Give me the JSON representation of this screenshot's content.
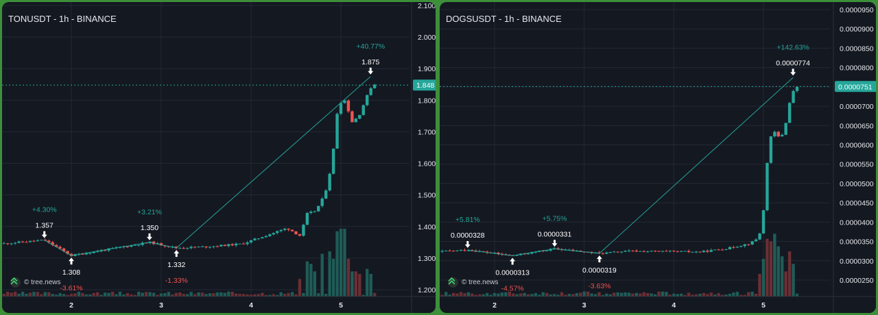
{
  "colors": {
    "up": "#26a69a",
    "down": "#ef5350",
    "background": "#141821",
    "grid": "#232834",
    "price_tag": "#26a69a",
    "text": "#c9ccd2"
  },
  "watermark_text": "© tree.news",
  "chart_data": [
    {
      "type": "candlestick",
      "title": "TONUSDT - 1h - BINANCE",
      "x_ticks": [
        "2",
        "3",
        "4",
        "5"
      ],
      "y_ticks": [
        "2.100",
        "2.000",
        "1.900",
        "1.800",
        "1.700",
        "1.600",
        "1.500",
        "1.400",
        "1.300",
        "1.200"
      ],
      "ylim": [
        1.18,
        2.1
      ],
      "last_price": "1.848",
      "last_price_value": 1.848,
      "volume_ylim": [
        0,
        3000
      ],
      "annotations": [
        {
          "label": "1.357",
          "value": 1.357,
          "kind": "high",
          "pct": "+4.30%",
          "t": 1.7,
          "pct_color": "up"
        },
        {
          "label": "1.308",
          "value": 1.308,
          "kind": "low",
          "pct": "-3.61%",
          "t": 2.0,
          "pct_color": "down"
        },
        {
          "label": "1.350",
          "value": 1.35,
          "kind": "high",
          "pct": "+3.21%",
          "t": 2.87,
          "pct_color": "up"
        },
        {
          "label": "1.332",
          "value": 1.332,
          "kind": "low",
          "pct": "-1.33%",
          "t": 3.17,
          "pct_color": "down"
        },
        {
          "label": "1.875",
          "value": 1.875,
          "kind": "high",
          "pct": "+40.77%",
          "t": 5.33,
          "pct_color": "up"
        }
      ],
      "zigzag": [
        [
          1.7,
          1.357
        ],
        [
          2.0,
          1.308
        ],
        [
          2.87,
          1.35
        ],
        [
          3.17,
          1.332
        ],
        [
          5.33,
          1.875
        ]
      ],
      "anchors": [
        [
          1,
          1.34
        ],
        [
          1.7,
          1.357
        ],
        [
          2.0,
          1.308
        ],
        [
          2.87,
          1.35
        ],
        [
          3.17,
          1.332
        ],
        [
          3.5,
          1.336
        ],
        [
          3.9,
          1.345
        ],
        [
          4.2,
          1.375
        ],
        [
          4.4,
          1.395
        ],
        [
          4.55,
          1.37
        ],
        [
          4.62,
          1.44
        ],
        [
          4.72,
          1.45
        ],
        [
          4.82,
          1.5
        ],
        [
          4.9,
          1.6
        ],
        [
          4.97,
          1.79
        ],
        [
          5.05,
          1.8
        ],
        [
          5.12,
          1.73
        ],
        [
          5.2,
          1.75
        ],
        [
          5.3,
          1.82
        ],
        [
          5.35,
          1.85
        ]
      ],
      "time_range": [
        1.25,
        5.38
      ],
      "vol_spikes": [
        [
          4.55,
          700
        ],
        [
          4.62,
          1400
        ],
        [
          4.68,
          1300
        ],
        [
          4.72,
          1000
        ],
        [
          4.8,
          1700
        ],
        [
          4.86,
          1800
        ],
        [
          4.92,
          1500
        ],
        [
          4.97,
          2600
        ],
        [
          5.02,
          2700
        ],
        [
          5.06,
          2700
        ],
        [
          5.1,
          1500
        ],
        [
          5.15,
          1000
        ],
        [
          5.22,
          900
        ],
        [
          5.28,
          1100
        ],
        [
          5.33,
          900
        ]
      ]
    },
    {
      "type": "candlestick",
      "title": "DOGSUSDT - 1h - BINANCE",
      "x_ticks": [
        "2",
        "3",
        "4",
        "5"
      ],
      "y_ticks": [
        "0.0000950",
        "0.0000900",
        "0.0000850",
        "0.0000800",
        "0.0000750",
        "0.0000700",
        "0.0000650",
        "0.0000600",
        "0.0000550",
        "0.0000500",
        "0.0000450",
        "0.0000400",
        "0.0000350",
        "0.0000300",
        "0.0000250"
      ],
      "ylim": [
        2.21e-05,
        9.55e-05
      ],
      "last_price": "0.0000751",
      "last_price_value": 7.51e-05,
      "volume_ylim": [
        0,
        3000
      ],
      "annotations": [
        {
          "label": "0.0000328",
          "value": 3.28e-05,
          "kind": "high",
          "pct": "+5.81%",
          "t": 1.7,
          "pct_color": "up"
        },
        {
          "label": "0.0000313",
          "value": 3.13e-05,
          "kind": "low",
          "pct": "-4.57%",
          "t": 2.2,
          "pct_color": "down"
        },
        {
          "label": "0.0000331",
          "value": 3.31e-05,
          "kind": "high",
          "pct": "+5.75%",
          "t": 2.67,
          "pct_color": "up"
        },
        {
          "label": "0.0000319",
          "value": 3.19e-05,
          "kind": "low",
          "pct": "-3.63%",
          "t": 3.17,
          "pct_color": "down"
        },
        {
          "label": "0.0000774",
          "value": 7.74e-05,
          "kind": "high",
          "pct": "+142.63%",
          "t": 5.33,
          "pct_color": "up"
        }
      ],
      "zigzag": [
        [
          1.7,
          3.28e-05
        ],
        [
          2.2,
          3.13e-05
        ],
        [
          2.67,
          3.31e-05
        ],
        [
          3.17,
          3.19e-05
        ],
        [
          5.33,
          7.74e-05
        ]
      ],
      "anchors": [
        [
          1,
          3.18e-05
        ],
        [
          1.7,
          3.28e-05
        ],
        [
          2.2,
          3.13e-05
        ],
        [
          2.67,
          3.31e-05
        ],
        [
          3.17,
          3.19e-05
        ],
        [
          3.5,
          3.25e-05
        ],
        [
          3.9,
          3.24e-05
        ],
        [
          4.3,
          3.23e-05
        ],
        [
          4.6,
          3.32e-05
        ],
        [
          4.85,
          3.45e-05
        ],
        [
          4.95,
          3.6e-05
        ],
        [
          5.0,
          4.3e-05
        ],
        [
          5.05,
          5.8e-05
        ],
        [
          5.1,
          6.4e-05
        ],
        [
          5.17,
          6.2e-05
        ],
        [
          5.23,
          6.3e-05
        ],
        [
          5.28,
          7e-05
        ],
        [
          5.35,
          7.5e-05
        ]
      ],
      "time_range": [
        1.25,
        5.38
      ],
      "vol_spikes": [
        [
          4.97,
          900
        ],
        [
          5.0,
          1500
        ],
        [
          5.04,
          2300
        ],
        [
          5.08,
          2200
        ],
        [
          5.12,
          2500
        ],
        [
          5.16,
          2000
        ],
        [
          5.2,
          1600
        ],
        [
          5.25,
          1000
        ],
        [
          5.3,
          1800
        ],
        [
          5.35,
          1300
        ]
      ]
    }
  ]
}
